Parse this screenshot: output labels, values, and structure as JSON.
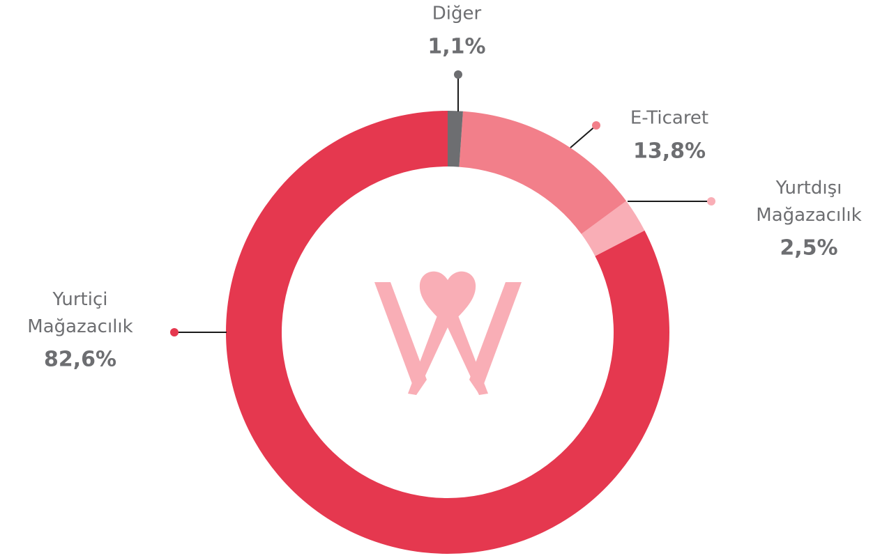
{
  "chart_data": {
    "type": "donut",
    "categories": [
      "Diğer",
      "E-Ticaret",
      "Yurtdışı Mağazacılık",
      "Yurtiçi Mağazacılık"
    ],
    "values": [
      1.1,
      13.8,
      2.5,
      82.6
    ],
    "value_labels": [
      "1,1%",
      "13,8%",
      "2,5%",
      "82,6%"
    ],
    "colors": [
      "#6d6e71",
      "#f27f8a",
      "#f9aeb6",
      "#e5384f"
    ]
  }
}
